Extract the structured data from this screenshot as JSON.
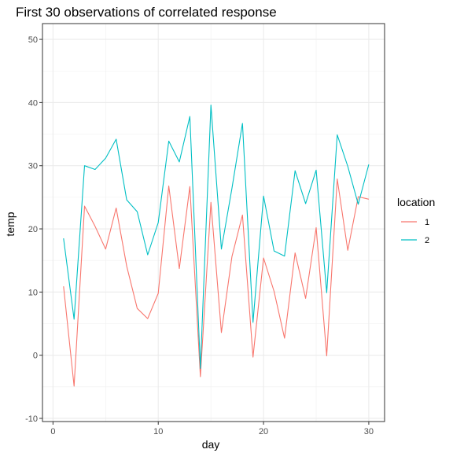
{
  "chart_data": {
    "type": "line",
    "title": "First 30 observations of correlated response",
    "xlabel": "day",
    "ylabel": "temp",
    "xlim": [
      -1,
      31.5
    ],
    "ylim": [
      -10.5,
      52.5
    ],
    "x_ticks": [
      0,
      10,
      20,
      30
    ],
    "y_ticks": [
      -10,
      0,
      10,
      20,
      30,
      40,
      50
    ],
    "grid": true,
    "legend": {
      "title": "location",
      "position": "right"
    },
    "x": [
      1,
      2,
      3,
      4,
      5,
      6,
      7,
      8,
      9,
      10,
      11,
      12,
      13,
      14,
      15,
      16,
      17,
      18,
      19,
      20,
      21,
      22,
      23,
      24,
      25,
      26,
      27,
      28,
      29,
      30
    ],
    "series": [
      {
        "name": "1",
        "color": "#F8766D",
        "values": [
          10.9,
          -4.9,
          23.6,
          20.4,
          16.8,
          23.3,
          14.1,
          7.4,
          5.8,
          9.8,
          26.8,
          13.7,
          26.7,
          -3.4,
          24.2,
          3.6,
          15.6,
          22.2,
          -0.3,
          15.4,
          10.1,
          2.7,
          16.2,
          9.0,
          20.2,
          -0.1,
          27.9,
          16.6,
          25.1,
          24.7
        ]
      },
      {
        "name": "2",
        "color": "#00BFC4",
        "values": [
          18.5,
          5.7,
          30.0,
          29.4,
          31.2,
          34.2,
          24.6,
          22.7,
          15.9,
          21.0,
          33.9,
          30.6,
          37.8,
          -2.1,
          39.6,
          16.8,
          26.4,
          36.7,
          5.2,
          25.2,
          16.5,
          15.7,
          29.2,
          24.0,
          29.3,
          9.9,
          34.9,
          29.9,
          23.9,
          30.2
        ]
      }
    ]
  }
}
